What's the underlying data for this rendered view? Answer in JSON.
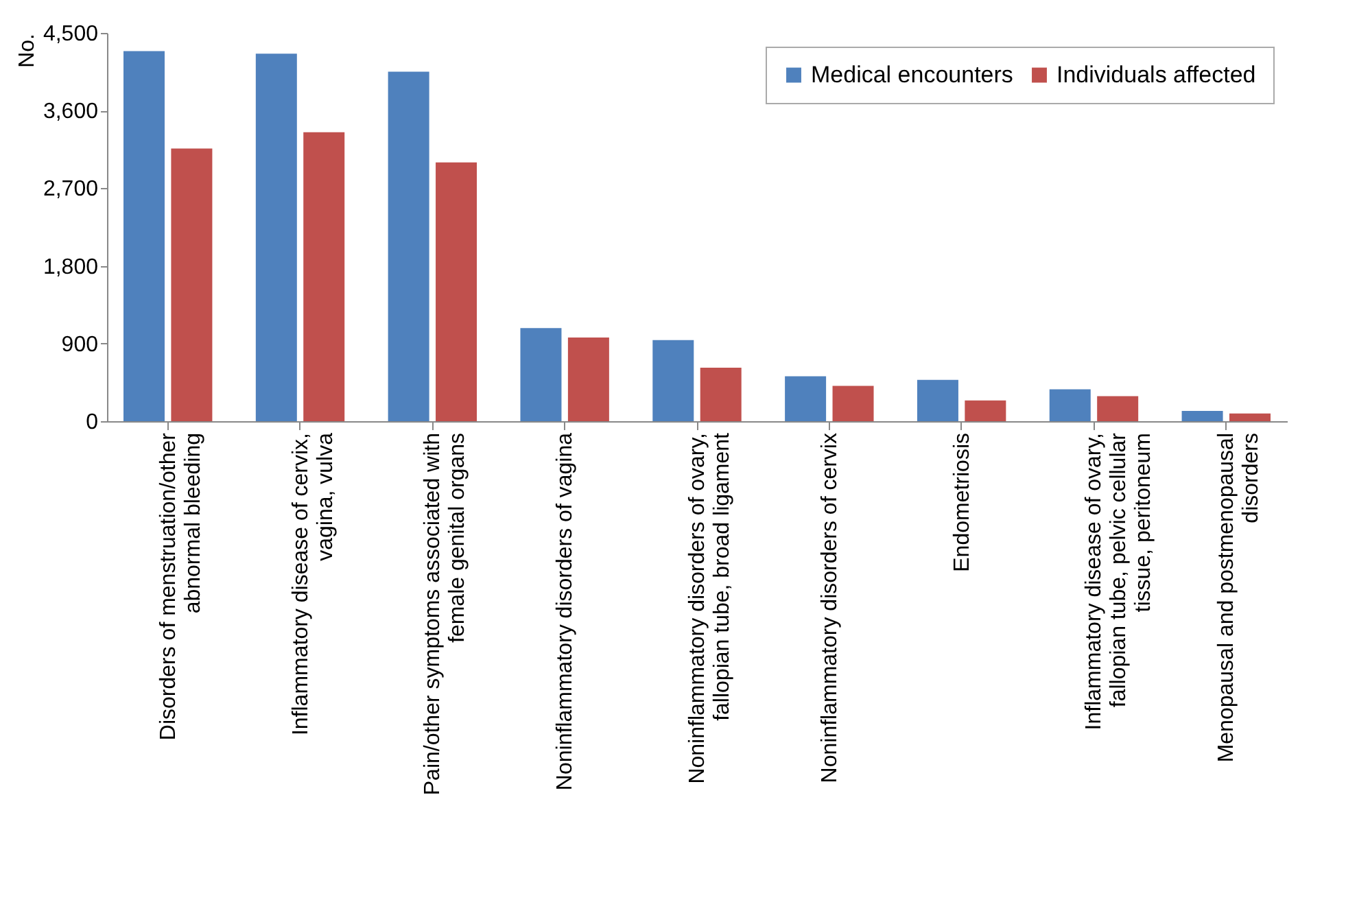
{
  "chart_data": {
    "type": "bar",
    "ylabel": "No.",
    "categories": [
      "Disorders of menstruation/other abnormal bleeding",
      "Inflammatory disease of cervix, vagina, vulva",
      "Pain/other symptoms associated with female genital organs",
      "Noninflammatory disorders of vagina",
      "Noninflammatory disorders of ovary, fallopian tube, broad ligament",
      "Noninflammatory disorders of cervix",
      "Endometriosis",
      "Inflammatory disease of ovary, fallopian tube, pelvic cellular tissue, peritoneum",
      "Menopausal and postmenopausal disorders"
    ],
    "series": [
      {
        "name": "Medical encounters",
        "color": "#4f81bd",
        "values": [
          4290,
          4260,
          4050,
          1080,
          940,
          520,
          480,
          370,
          120
        ]
      },
      {
        "name": "Individuals affected",
        "color": "#c0504d",
        "values": [
          3160,
          3350,
          3000,
          970,
          620,
          410,
          240,
          290,
          90
        ]
      }
    ],
    "ylim": [
      0,
      4500
    ],
    "yticks": [
      0,
      900,
      {
        "value": 1800,
        "label": "1,800"
      },
      {
        "value": 2700,
        "label": "2,700"
      },
      {
        "value": 3600,
        "label": "3,600"
      },
      {
        "value": 4500,
        "label": "4,500"
      }
    ],
    "grid": false,
    "legend": "top right"
  }
}
